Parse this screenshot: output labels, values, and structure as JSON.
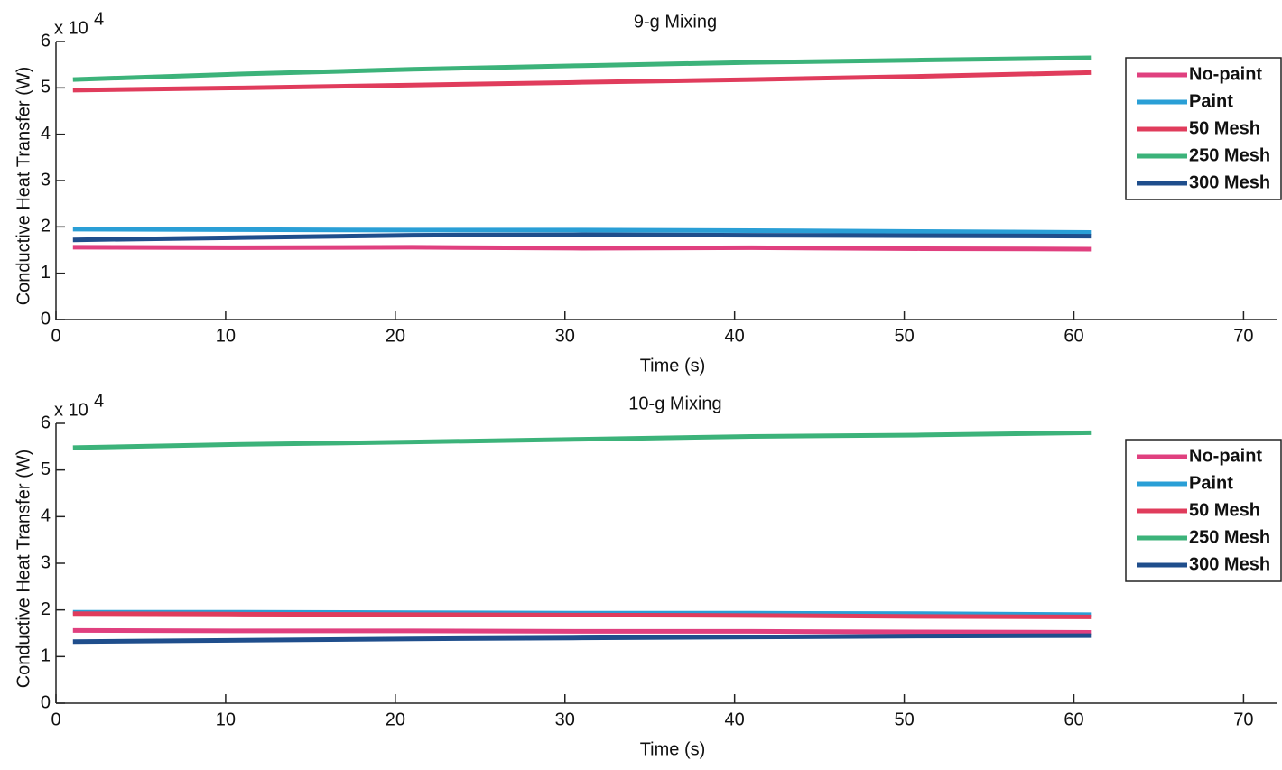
{
  "chart_data": [
    {
      "type": "line",
      "title": "9-g Mixing",
      "x_label": "Time (s)",
      "y_label": "Conductive Heat Transfer (W)",
      "y_multiplier": {
        "base": "x 10",
        "exponent": "4"
      },
      "x": [
        1,
        11,
        21,
        31,
        41,
        51,
        61
      ],
      "series": [
        {
          "name": "No-paint",
          "color": "#e0407f",
          "values": [
            1.56,
            1.55,
            1.56,
            1.54,
            1.55,
            1.53,
            1.52
          ]
        },
        {
          "name": "Paint",
          "color": "#2a9fd6",
          "values": [
            1.95,
            1.94,
            1.93,
            1.93,
            1.92,
            1.9,
            1.88
          ]
        },
        {
          "name": "50 Mesh",
          "color": "#e03c5c",
          "values": [
            4.95,
            5.0,
            5.06,
            5.12,
            5.18,
            5.25,
            5.33
          ]
        },
        {
          "name": "250 Mesh",
          "color": "#3cb37a",
          "values": [
            5.18,
            5.3,
            5.4,
            5.48,
            5.55,
            5.6,
            5.65
          ]
        },
        {
          "name": "300 Mesh",
          "color": "#1f4e8c",
          "values": [
            1.72,
            1.77,
            1.82,
            1.83,
            1.82,
            1.81,
            1.8
          ]
        }
      ],
      "xlim": [
        0,
        72
      ],
      "ylim": [
        0,
        6
      ],
      "xticks": [
        0,
        10,
        20,
        30,
        40,
        50,
        60,
        70
      ],
      "yticks": [
        0,
        1,
        2,
        3,
        4,
        5,
        6
      ],
      "grid": false,
      "legend": "upper right"
    },
    {
      "type": "line",
      "title": "10-g Mixing",
      "x_label": "Time (s)",
      "y_label": "Conductive Heat Transfer (W)",
      "y_multiplier": {
        "base": "x 10",
        "exponent": "4"
      },
      "x": [
        1,
        11,
        21,
        31,
        41,
        51,
        61
      ],
      "series": [
        {
          "name": "No-paint",
          "color": "#e0407f",
          "values": [
            1.56,
            1.55,
            1.55,
            1.54,
            1.54,
            1.53,
            1.52
          ]
        },
        {
          "name": "Paint",
          "color": "#2a9fd6",
          "values": [
            1.95,
            1.95,
            1.94,
            1.93,
            1.93,
            1.92,
            1.9
          ]
        },
        {
          "name": "50 Mesh",
          "color": "#e03c5c",
          "values": [
            1.92,
            1.91,
            1.9,
            1.89,
            1.88,
            1.86,
            1.85
          ]
        },
        {
          "name": "250 Mesh",
          "color": "#3cb37a",
          "values": [
            5.48,
            5.55,
            5.6,
            5.66,
            5.72,
            5.75,
            5.8
          ]
        },
        {
          "name": "300 Mesh",
          "color": "#1f4e8c",
          "values": [
            1.32,
            1.35,
            1.38,
            1.4,
            1.42,
            1.44,
            1.45
          ]
        }
      ],
      "xlim": [
        0,
        72
      ],
      "ylim": [
        0,
        6
      ],
      "xticks": [
        0,
        10,
        20,
        30,
        40,
        50,
        60,
        70
      ],
      "yticks": [
        0,
        1,
        2,
        3,
        4,
        5,
        6
      ],
      "grid": false,
      "legend": "upper right"
    }
  ]
}
